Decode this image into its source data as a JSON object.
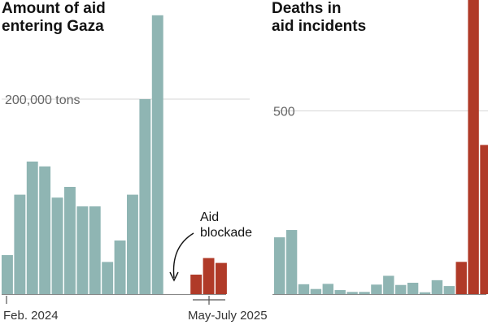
{
  "chart_data": [
    {
      "type": "bar",
      "title_lines": [
        "Amount of aid",
        "entering Gaza"
      ],
      "ylim": [
        0,
        280000
      ],
      "y_ticks": [
        {
          "value": 200000,
          "label": "200,000 tons"
        }
      ],
      "x_tick_labels": [
        "Feb. 2024",
        "May-July 2025"
      ],
      "series": [
        {
          "name": "",
          "color": "#8fb5b3",
          "values": [
            40000,
            102000,
            136000,
            131000,
            99000,
            110000,
            90000,
            90000,
            33000,
            55000,
            102000,
            200000,
            286000
          ]
        },
        {
          "name": "",
          "color": "#b03a28",
          "values": [
            20000,
            37000,
            32000
          ]
        }
      ],
      "annotation": {
        "lines": [
          "Aid",
          "blockade"
        ]
      },
      "grid": true
    },
    {
      "type": "bar",
      "title_lines": [
        "Deaths in",
        "aid incidents"
      ],
      "ylim": [
        0,
        900
      ],
      "y_ticks": [
        {
          "value": 500,
          "label": "500"
        }
      ],
      "series": [
        {
          "name": "",
          "color": "#8fb5b3",
          "values": [
            155,
            175,
            27,
            14,
            28,
            11,
            6,
            6,
            26,
            50,
            25,
            31,
            5,
            38,
            22
          ]
        },
        {
          "name": "",
          "color": "#b03a28",
          "values": [
            88,
            870,
            407
          ]
        }
      ],
      "grid": true
    }
  ]
}
